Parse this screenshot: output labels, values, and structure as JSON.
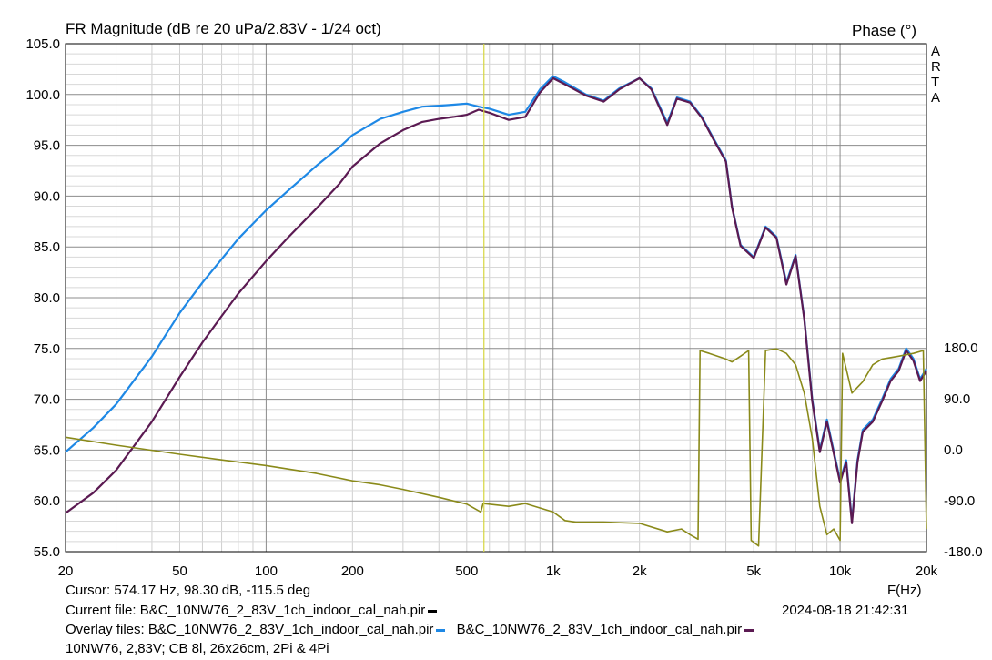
{
  "header": {
    "title": "FR Magnitude (dB re 20 uPa/2.83V - 1/24 oct)",
    "right_title": "Phase (°)",
    "brand_letters": [
      "A",
      "R",
      "T",
      "A"
    ]
  },
  "chart_data": {
    "type": "line",
    "x_scale": "log",
    "xlim": [
      20,
      20000
    ],
    "ylim": [
      55,
      105
    ],
    "y2lim": [
      -180,
      180
    ],
    "xlabel": "F(Hz)",
    "grid": true,
    "x_ticks": [
      {
        "value": 20,
        "label": "20"
      },
      {
        "value": 50,
        "label": "50"
      },
      {
        "value": 100,
        "label": "100"
      },
      {
        "value": 200,
        "label": "200"
      },
      {
        "value": 500,
        "label": "500"
      },
      {
        "value": 1000,
        "label": "1k"
      },
      {
        "value": 2000,
        "label": "2k"
      },
      {
        "value": 5000,
        "label": "5k"
      },
      {
        "value": 10000,
        "label": "10k"
      },
      {
        "value": 20000,
        "label": "20k"
      }
    ],
    "y_ticks": [
      "55.0",
      "60.0",
      "65.0",
      "70.0",
      "75.0",
      "80.0",
      "85.0",
      "90.0",
      "95.0",
      "100.0",
      "105.0"
    ],
    "y2_ticks": [
      {
        "value": 180,
        "label": "180.0"
      },
      {
        "value": 90,
        "label": "90.0"
      },
      {
        "value": 0,
        "label": "0.0"
      },
      {
        "value": -90,
        "label": "-90.0"
      },
      {
        "value": -180,
        "label": "-180.0"
      }
    ],
    "cursor_x": 574.17,
    "series": [
      {
        "color": "#1e88e5",
        "points": [
          [
            20,
            64.8
          ],
          [
            25,
            67.2
          ],
          [
            30,
            69.5
          ],
          [
            40,
            74.2
          ],
          [
            50,
            78.5
          ],
          [
            60,
            81.5
          ],
          [
            70,
            83.8
          ],
          [
            80,
            85.8
          ],
          [
            100,
            88.6
          ],
          [
            120,
            90.6
          ],
          [
            150,
            93.0
          ],
          [
            180,
            94.8
          ],
          [
            200,
            96.0
          ],
          [
            250,
            97.6
          ],
          [
            300,
            98.3
          ],
          [
            350,
            98.8
          ],
          [
            400,
            98.9
          ],
          [
            450,
            99.0
          ],
          [
            500,
            99.1
          ],
          [
            550,
            98.8
          ],
          [
            600,
            98.6
          ],
          [
            700,
            98.0
          ],
          [
            800,
            98.3
          ],
          [
            900,
            100.5
          ],
          [
            1000,
            101.8
          ],
          [
            1100,
            101.2
          ],
          [
            1300,
            100.0
          ],
          [
            1500,
            99.4
          ],
          [
            1700,
            100.6
          ],
          [
            2000,
            101.6
          ],
          [
            2200,
            100.6
          ],
          [
            2500,
            97.2
          ],
          [
            2700,
            99.7
          ],
          [
            3000,
            99.3
          ],
          [
            3300,
            97.8
          ],
          [
            3600,
            95.8
          ],
          [
            4000,
            93.5
          ],
          [
            4200,
            89.0
          ],
          [
            4500,
            85.2
          ],
          [
            5000,
            84.0
          ],
          [
            5500,
            87.0
          ],
          [
            6000,
            86.0
          ],
          [
            6500,
            81.5
          ],
          [
            7000,
            84.2
          ],
          [
            7500,
            78.0
          ],
          [
            8000,
            70.0
          ],
          [
            8500,
            65.0
          ],
          [
            9000,
            68.0
          ],
          [
            10000,
            62.0
          ],
          [
            10500,
            64.0
          ],
          [
            11000,
            58.0
          ],
          [
            11500,
            64.0
          ],
          [
            12000,
            67.0
          ],
          [
            13000,
            68.0
          ],
          [
            14000,
            70.0
          ],
          [
            15000,
            72.0
          ],
          [
            16000,
            73.0
          ],
          [
            17000,
            75.0
          ],
          [
            18000,
            74.0
          ],
          [
            19000,
            72.0
          ],
          [
            20000,
            73.0
          ]
        ]
      },
      {
        "color": "#5b1a52",
        "points": [
          [
            20,
            58.8
          ],
          [
            25,
            60.8
          ],
          [
            30,
            63.0
          ],
          [
            40,
            67.8
          ],
          [
            50,
            72.2
          ],
          [
            60,
            75.6
          ],
          [
            70,
            78.2
          ],
          [
            80,
            80.4
          ],
          [
            100,
            83.6
          ],
          [
            120,
            86.0
          ],
          [
            150,
            88.8
          ],
          [
            180,
            91.2
          ],
          [
            200,
            92.9
          ],
          [
            250,
            95.2
          ],
          [
            300,
            96.5
          ],
          [
            350,
            97.3
          ],
          [
            400,
            97.6
          ],
          [
            450,
            97.8
          ],
          [
            500,
            98.0
          ],
          [
            550,
            98.5
          ],
          [
            600,
            98.2
          ],
          [
            700,
            97.5
          ],
          [
            800,
            97.8
          ],
          [
            900,
            100.2
          ],
          [
            1000,
            101.6
          ],
          [
            1100,
            101.0
          ],
          [
            1300,
            99.9
          ],
          [
            1500,
            99.3
          ],
          [
            1700,
            100.5
          ],
          [
            2000,
            101.6
          ],
          [
            2200,
            100.5
          ],
          [
            2500,
            97.0
          ],
          [
            2700,
            99.6
          ],
          [
            3000,
            99.2
          ],
          [
            3300,
            97.7
          ],
          [
            3600,
            95.7
          ],
          [
            4000,
            93.4
          ],
          [
            4200,
            88.9
          ],
          [
            4500,
            85.1
          ],
          [
            5000,
            83.9
          ],
          [
            5500,
            86.9
          ],
          [
            6000,
            85.9
          ],
          [
            6500,
            81.3
          ],
          [
            7000,
            84.1
          ],
          [
            7500,
            77.9
          ],
          [
            8000,
            69.8
          ],
          [
            8500,
            64.8
          ],
          [
            9000,
            67.8
          ],
          [
            10000,
            61.8
          ],
          [
            10500,
            63.8
          ],
          [
            11000,
            57.8
          ],
          [
            11500,
            63.8
          ],
          [
            12000,
            66.8
          ],
          [
            13000,
            67.8
          ],
          [
            14000,
            69.8
          ],
          [
            15000,
            71.8
          ],
          [
            16000,
            72.8
          ],
          [
            17000,
            74.8
          ],
          [
            18000,
            73.8
          ],
          [
            19000,
            71.8
          ],
          [
            20000,
            72.8
          ]
        ]
      },
      {
        "color": "#8a8a1a",
        "axis": "y2",
        "points": [
          [
            20,
            22
          ],
          [
            30,
            8
          ],
          [
            50,
            -8
          ],
          [
            70,
            -18
          ],
          [
            100,
            -28
          ],
          [
            150,
            -42
          ],
          [
            200,
            -55
          ],
          [
            250,
            -62
          ],
          [
            300,
            -70
          ],
          [
            400,
            -84
          ],
          [
            500,
            -96
          ],
          [
            560,
            -110
          ],
          [
            570,
            -95
          ],
          [
            700,
            -100
          ],
          [
            800,
            -95
          ],
          [
            1000,
            -110
          ],
          [
            1100,
            -125
          ],
          [
            1200,
            -128
          ],
          [
            1500,
            -128
          ],
          [
            2000,
            -130
          ],
          [
            2500,
            -145
          ],
          [
            2800,
            -140
          ],
          [
            3000,
            -150
          ],
          [
            3200,
            -158
          ],
          [
            3250,
            175
          ],
          [
            3500,
            170
          ],
          [
            4000,
            160
          ],
          [
            4200,
            155
          ],
          [
            4500,
            165
          ],
          [
            4800,
            175
          ],
          [
            4900,
            -160
          ],
          [
            5200,
            -170
          ],
          [
            5500,
            175
          ],
          [
            6000,
            178
          ],
          [
            6500,
            170
          ],
          [
            7000,
            150
          ],
          [
            7500,
            100
          ],
          [
            8000,
            20
          ],
          [
            8500,
            -100
          ],
          [
            9000,
            -150
          ],
          [
            9500,
            -140
          ],
          [
            10000,
            -160
          ],
          [
            10200,
            170
          ],
          [
            11000,
            100
          ],
          [
            12000,
            120
          ],
          [
            13000,
            150
          ],
          [
            14000,
            160
          ],
          [
            16000,
            165
          ],
          [
            18000,
            170
          ],
          [
            19500,
            175
          ],
          [
            20000,
            -140
          ]
        ]
      }
    ]
  },
  "footer": {
    "cursor": "Cursor: 574.17 Hz, 98.30 dB, -115.5 deg",
    "current_file": "Current file: B&C_10NW76_2_83V_1ch_indoor_cal_nah.pir",
    "datetime": "2024-08-18  21:42:31",
    "overlay_label": "Overlay files: ",
    "overlay_file_1": "B&C_10NW76_2_83V_1ch_indoor_cal_nah.pir",
    "overlay_file_2": "B&C_10NW76_2_83V_1ch_indoor_cal_nah.pir",
    "note": "10NW76, 2,83V; CB 8l, 26x26cm, 2Pi & 4Pi",
    "colors": {
      "current": "#000000",
      "overlay_1": "#1e88e5",
      "overlay_2": "#5b1a52"
    }
  }
}
